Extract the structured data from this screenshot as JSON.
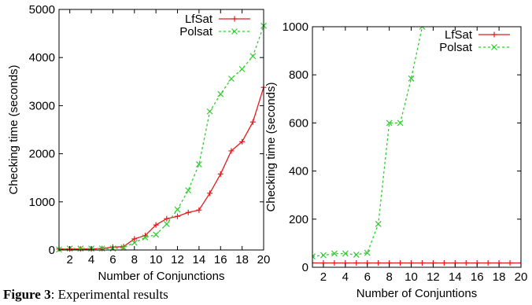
{
  "caption": {
    "label": "Figure 3",
    "text": ": Experimental results"
  },
  "colors": {
    "lfsat": "#e41a1c",
    "polsat": "#2ecc2e",
    "axis": "#000000"
  },
  "chart_data": [
    {
      "type": "line",
      "xlabel": "Number of Conjunctions",
      "ylabel": "Checking time (seconds)",
      "xlim": [
        1,
        20
      ],
      "ylim": [
        0,
        5000
      ],
      "xticks": [
        2,
        4,
        6,
        8,
        10,
        12,
        14,
        16,
        18,
        20
      ],
      "yticks": [
        0,
        1000,
        2000,
        3000,
        4000,
        5000
      ],
      "legend_position": "top-right",
      "x": [
        1,
        2,
        3,
        4,
        5,
        6,
        7,
        8,
        9,
        10,
        11,
        12,
        13,
        14,
        15,
        16,
        17,
        18,
        19,
        20
      ],
      "series": [
        {
          "name": "LfSat",
          "values": [
            20,
            20,
            20,
            20,
            30,
            60,
            70,
            230,
            300,
            520,
            650,
            700,
            780,
            830,
            1180,
            1580,
            2060,
            2250,
            2660,
            3380
          ]
        },
        {
          "name": "Polsat",
          "values": [
            10,
            30,
            30,
            30,
            30,
            30,
            50,
            150,
            260,
            320,
            540,
            840,
            1240,
            1780,
            2880,
            3240,
            3560,
            3760,
            4030,
            4660
          ]
        }
      ]
    },
    {
      "type": "line",
      "xlabel": "Number of Conjuntions",
      "ylabel": "Checking time (seconds)",
      "xlim": [
        1,
        20
      ],
      "ylim": [
        0,
        1000
      ],
      "xticks": [
        2,
        4,
        6,
        8,
        10,
        12,
        14,
        16,
        18,
        20
      ],
      "yticks": [
        0,
        200,
        400,
        600,
        800,
        1000
      ],
      "legend_position": "top-right",
      "x": [
        1,
        2,
        3,
        4,
        5,
        6,
        7,
        8,
        9,
        10,
        11,
        12,
        13,
        14,
        15,
        16,
        17,
        18,
        19,
        20
      ],
      "series": [
        {
          "name": "LfSat",
          "values": [
            18,
            18,
            18,
            18,
            18,
            18,
            18,
            18,
            18,
            18,
            18,
            18,
            18,
            18,
            18,
            18,
            18,
            18,
            18,
            18
          ]
        },
        {
          "name": "Polsat",
          "values": [
            45,
            50,
            57,
            57,
            52,
            60,
            180,
            600,
            600,
            785,
            1000,
            null,
            null,
            null,
            null,
            null,
            null,
            null,
            null,
            null
          ]
        }
      ]
    }
  ]
}
